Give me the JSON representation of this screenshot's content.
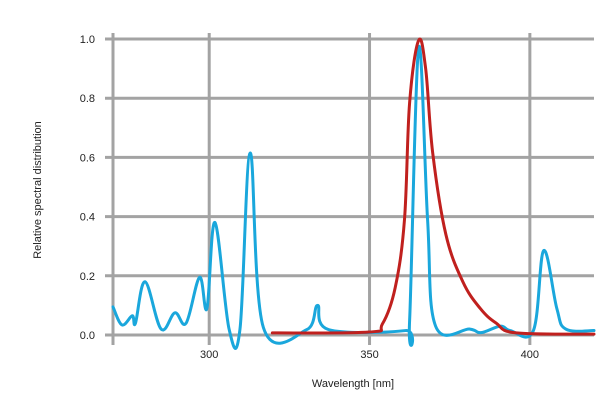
{
  "chart_data": {
    "type": "line",
    "title": "",
    "xlabel": "Wavelength [nm]",
    "ylabel": "Relative spectral distribution",
    "xlim": [
      270,
      420
    ],
    "ylim": [
      0,
      1.0
    ],
    "grid": true,
    "x_ticks": [
      300,
      350,
      400
    ],
    "x_tick_labels": [
      "300",
      "350",
      "400"
    ],
    "y_ticks": [
      0,
      0.2,
      0.4,
      0.6,
      0.8,
      1.0
    ],
    "y_tick_labels": [
      "0.0",
      "0.2",
      "0.4",
      "0.6",
      "0.8",
      "1.0"
    ],
    "colors": {
      "grid": "#a3a3a3"
    },
    "series": [
      {
        "color": "#1aa7dc",
        "points": [
          [
            270,
            0.095
          ],
          [
            272.8,
            0.034
          ],
          [
            276,
            0.065
          ],
          [
            277,
            0.04
          ],
          [
            280,
            0.18
          ],
          [
            285,
            0.02
          ],
          [
            289.3,
            0.075
          ],
          [
            292.8,
            0.04
          ],
          [
            297,
            0.195
          ],
          [
            299.3,
            0.09
          ],
          [
            301.8,
            0.38
          ],
          [
            306.2,
            0.02
          ],
          [
            309.6,
            0.02
          ],
          [
            312.8,
            0.615
          ],
          [
            316.9,
            0.025
          ],
          [
            330.4,
            0.018
          ],
          [
            333.8,
            0.1
          ],
          [
            337.3,
            0.018
          ],
          [
            361.2,
            0.015
          ],
          [
            362.5,
            0.05
          ],
          [
            365.3,
            0.97
          ],
          [
            368.1,
            0.39
          ],
          [
            370.6,
            0.03
          ],
          [
            381.3,
            0.02
          ],
          [
            384.8,
            0.008
          ],
          [
            390.8,
            0.03
          ],
          [
            393.9,
            0.015
          ],
          [
            401.1,
            0.015
          ],
          [
            404.3,
            0.285
          ],
          [
            408.4,
            0.09
          ],
          [
            411.2,
            0.02
          ],
          [
            420,
            0.015
          ]
        ]
      },
      {
        "color": "#c0201e",
        "points": [
          [
            319.7,
            0.007
          ],
          [
            349.9,
            0.01
          ],
          [
            354,
            0.037
          ],
          [
            358,
            0.16
          ],
          [
            360.9,
            0.39
          ],
          [
            362.5,
            0.785
          ],
          [
            365.3,
            0.995
          ],
          [
            367.5,
            0.9
          ],
          [
            369.7,
            0.615
          ],
          [
            373.8,
            0.34
          ],
          [
            379.1,
            0.18
          ],
          [
            384.5,
            0.09
          ],
          [
            389.5,
            0.04
          ],
          [
            395.8,
            0.007
          ],
          [
            420,
            0.003
          ]
        ]
      }
    ]
  }
}
